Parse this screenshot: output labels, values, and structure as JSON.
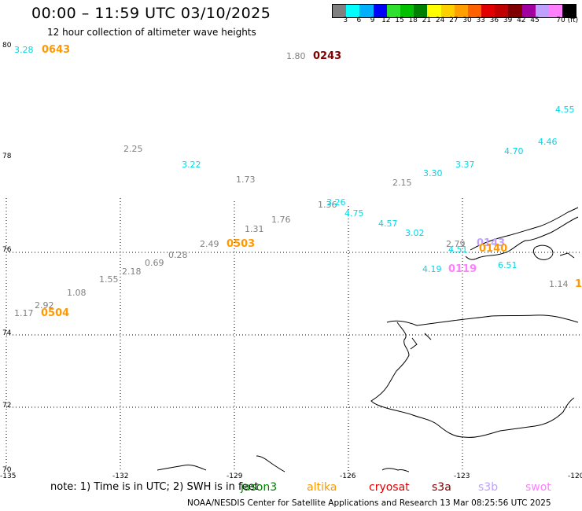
{
  "title": "00:00 – 11:59 UTC 03/10/2025",
  "subtitle": "12 hour collection of altimeter wave heights",
  "colorbar": {
    "colors": [
      "#808080",
      "#00ffff",
      "#00b0ff",
      "#0000ff",
      "#30e030",
      "#00c000",
      "#008000",
      "#ffff00",
      "#ffd000",
      "#ffa000",
      "#ff6000",
      "#e00000",
      "#c00000",
      "#800000",
      "#a000a0",
      "#c0a0ff",
      "#ff80ff",
      "#000000"
    ],
    "labels": [
      "3",
      "6",
      "9",
      "12",
      "15",
      "18",
      "21",
      "24",
      "27",
      "30",
      "33",
      "36",
      "39",
      "42",
      "45",
      "70 (ft)"
    ]
  },
  "axes": {
    "lat_labels": [
      "80",
      "78",
      "76",
      "74",
      "72",
      "70"
    ],
    "lon_labels": [
      "-135",
      "-132",
      "-129",
      "-126",
      "-123",
      "-120"
    ]
  },
  "wave_heights": [
    {
      "text": "3.28",
      "color": "#00d8e8"
    },
    {
      "text": "0643",
      "color": "#ff9900",
      "time": true
    },
    {
      "text": "1.80",
      "color": "#808080"
    },
    {
      "text": "0243",
      "color": "#800000",
      "time": true
    },
    {
      "text": "4.55",
      "color": "#00d8e8"
    },
    {
      "text": "4.46",
      "color": "#00d8e8"
    },
    {
      "text": "4.70",
      "color": "#00d8e8"
    },
    {
      "text": "2.25",
      "color": "#808080"
    },
    {
      "text": "3.22",
      "color": "#00d8e8"
    },
    {
      "text": "3.37",
      "color": "#00d8e8"
    },
    {
      "text": "3.30",
      "color": "#00d8e8"
    },
    {
      "text": "1.73",
      "color": "#808080"
    },
    {
      "text": "2.15",
      "color": "#808080"
    },
    {
      "text": "1.36",
      "color": "#808080"
    },
    {
      "text": "3.26",
      "color": "#00d8e8"
    },
    {
      "text": "4.75",
      "color": "#00d8e8"
    },
    {
      "text": "1.76",
      "color": "#808080"
    },
    {
      "text": "4.57",
      "color": "#00d8e8"
    },
    {
      "text": "1.31",
      "color": "#808080"
    },
    {
      "text": "3.02",
      "color": "#00d8e8"
    },
    {
      "text": "2.49",
      "color": "#808080"
    },
    {
      "text": "0503",
      "color": "#ff9900",
      "time": true
    },
    {
      "text": "2.79",
      "color": "#808080"
    },
    {
      "text": "0143",
      "color": "#c0a0ff",
      "time": true
    },
    {
      "text": "0.28",
      "color": "#808080"
    },
    {
      "text": "4.51",
      "color": "#00d8e8"
    },
    {
      "text": "0140",
      "color": "#ff9900",
      "time": true
    },
    {
      "text": "0.69",
      "color": "#808080"
    },
    {
      "text": "2.18",
      "color": "#808080"
    },
    {
      "text": "4.19",
      "color": "#00d8e8"
    },
    {
      "text": "0119",
      "color": "#ff80ff",
      "time": true
    },
    {
      "text": "6.51",
      "color": "#00d8e8"
    },
    {
      "text": "1.55",
      "color": "#808080"
    },
    {
      "text": "1.14",
      "color": "#808080"
    },
    {
      "text": "1",
      "color": "#ff9900",
      "time": true
    },
    {
      "text": "1.08",
      "color": "#808080"
    },
    {
      "text": "2.92",
      "color": "#808080"
    },
    {
      "text": "1.17",
      "color": "#808080"
    },
    {
      "text": "0504",
      "color": "#ff9900",
      "time": true
    }
  ],
  "note": "note:  1) Time is in UTC;  2) SWH is in feet",
  "legend": [
    {
      "text": "jason3",
      "color": "#008000"
    },
    {
      "text": "altika",
      "color": "#ff9900"
    },
    {
      "text": "cryosat",
      "color": "#e00000"
    },
    {
      "text": "s3a",
      "color": "#800000"
    },
    {
      "text": "s3b",
      "color": "#c0a0ff"
    },
    {
      "text": "swot",
      "color": "#ff80ff"
    }
  ],
  "footer": "NOAA/NESDIS Center for Satellite Applications and Research    13 Mar 08:25:56 UTC 2025"
}
